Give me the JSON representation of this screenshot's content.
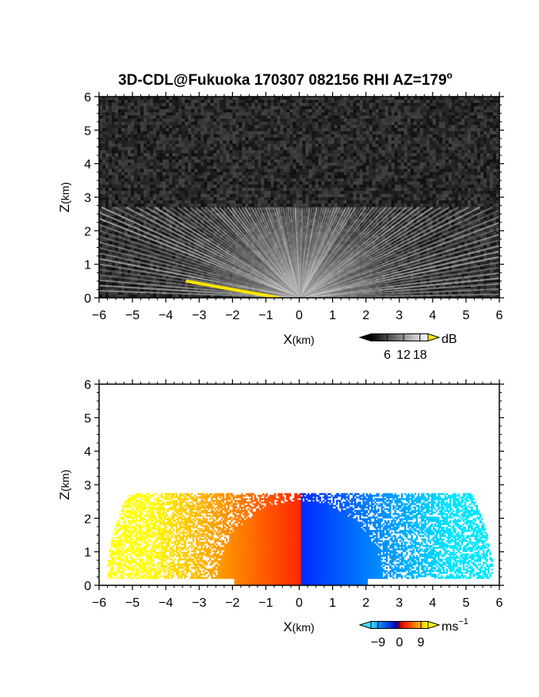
{
  "chart_data": [
    {
      "type": "heatmap",
      "title": "3D-CDL@Fukuoka 170307 082156 RHI AZ=179",
      "title_superscript": "o",
      "xlabel": "X",
      "xlabel_unit": "(km)",
      "ylabel": "Z",
      "ylabel_unit": "(km)",
      "xlim": [
        -6,
        6
      ],
      "ylim": [
        0,
        6
      ],
      "xticks": [
        "-6",
        "-5",
        "-4",
        "-3",
        "-2",
        "-1",
        "0",
        "1",
        "2",
        "3",
        "4",
        "5",
        "6"
      ],
      "yticks": [
        "0",
        "1",
        "2",
        "3",
        "4",
        "5",
        "6"
      ],
      "colorscale": "grayscale",
      "background_color": "#222222",
      "colorbar": {
        "unit": "dB",
        "ticks": [
          "6",
          "12",
          "18"
        ],
        "tick_values": [
          6,
          12,
          18
        ],
        "range": [
          0,
          21
        ],
        "overflow_color": "#ffe600"
      },
      "echo_layer_top_km": 2.7,
      "blocked_band": {
        "color": "#ffe600",
        "from": [
          -3.4,
          0.5
        ],
        "to": [
          -0.6,
          0.0
        ]
      }
    },
    {
      "type": "heatmap",
      "xlabel": "X",
      "xlabel_unit": "(km)",
      "ylabel": "Z",
      "ylabel_unit": "(km)",
      "xlim": [
        -6,
        6
      ],
      "ylim": [
        0,
        6
      ],
      "xticks": [
        "-6",
        "-5",
        "-4",
        "-3",
        "-2",
        "-1",
        "0",
        "1",
        "2",
        "3",
        "4",
        "5",
        "6"
      ],
      "yticks": [
        "0",
        "1",
        "2",
        "3",
        "4",
        "5",
        "6"
      ],
      "colorscale": "jet (blue-cyan negative, red-yellow positive)",
      "colorbar": {
        "unit": "ms",
        "unit_superscript": "−1",
        "ticks": [
          "−9",
          "0",
          "9"
        ],
        "tick_values": [
          -9,
          0,
          9
        ],
        "range": [
          -12,
          12
        ],
        "low_color": "#40e0ff",
        "high_color": "#ffff00"
      },
      "velocity_field": {
        "negative_x_side_ms": 9,
        "positive_x_side_ms": -9,
        "sign_change_x_km": 0
      },
      "echo_layer_top_km": 2.7
    }
  ]
}
